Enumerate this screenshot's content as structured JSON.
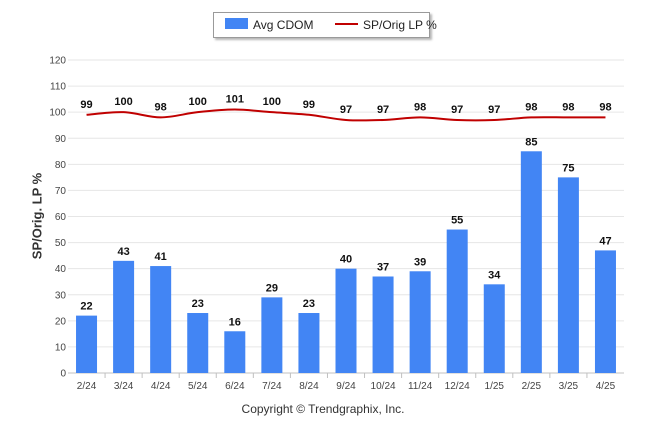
{
  "chart_data": {
    "type": "bar",
    "categories": [
      "2/24",
      "3/24",
      "4/24",
      "5/24",
      "6/24",
      "7/24",
      "8/24",
      "9/24",
      "10/24",
      "11/24",
      "12/24",
      "1/25",
      "2/25",
      "3/25",
      "4/25"
    ],
    "series": [
      {
        "name": "Avg CDOM",
        "type": "bar",
        "color": "#4285f4",
        "values": [
          22,
          43,
          41,
          23,
          16,
          29,
          23,
          40,
          37,
          39,
          55,
          34,
          85,
          75,
          47
        ]
      },
      {
        "name": "SP/Orig LP %",
        "type": "line",
        "color": "#c00000",
        "values": [
          99,
          100,
          98,
          100,
          101,
          100,
          99,
          97,
          97,
          98,
          97,
          97,
          98,
          98,
          98
        ]
      }
    ],
    "ylabel": "SP/Orig. LP %",
    "ylim": [
      0,
      120
    ],
    "yticks": [
      0,
      10,
      20,
      30,
      40,
      50,
      60,
      70,
      80,
      90,
      100,
      110,
      120
    ],
    "grid": true,
    "legend_position": "top-center"
  },
  "footer": {
    "copyright": "Copyright © Trendgraphix, Inc."
  }
}
